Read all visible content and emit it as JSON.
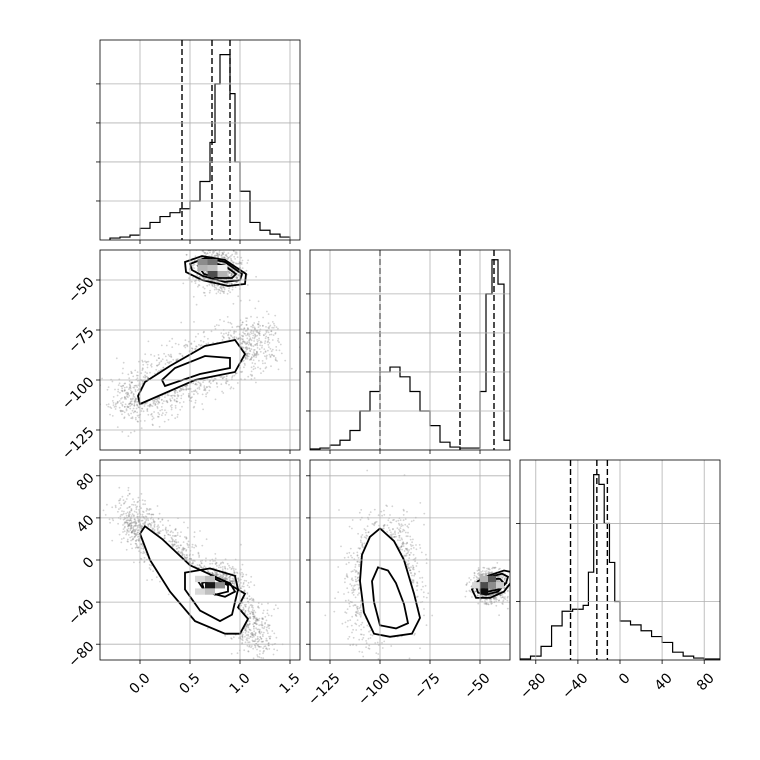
{
  "chart_data": {
    "type": "corner",
    "parameters": [
      {
        "xlim": [
          -0.4,
          1.6
        ],
        "ticks": [
          0.0,
          0.5,
          1.0,
          1.5
        ],
        "tick_labels": [
          "0.0",
          "0.5",
          "1.0",
          "1.5"
        ]
      },
      {
        "xlim": [
          -135,
          -35
        ],
        "ticks": [
          -125,
          -100,
          -75,
          -50
        ],
        "tick_labels": [
          "−125",
          "−100",
          "−75",
          "−50"
        ]
      },
      {
        "xlim": [
          -95,
          95
        ],
        "ticks": [
          -80,
          -40,
          0,
          40,
          80
        ],
        "tick_labels": [
          "−80",
          "−40",
          "0",
          "40",
          "80"
        ]
      }
    ],
    "histograms": [
      {
        "param": 0,
        "edges": [
          -0.3,
          -0.2,
          -0.1,
          0.0,
          0.1,
          0.2,
          0.3,
          0.4,
          0.5,
          0.6,
          0.7,
          0.75,
          0.8,
          0.85,
          0.9,
          0.95,
          1.0,
          1.1,
          1.2,
          1.3,
          1.4,
          1.5
        ],
        "counts": [
          2,
          3,
          5,
          12,
          18,
          24,
          28,
          32,
          40,
          60,
          100,
          160,
          190,
          190,
          150,
          80,
          50,
          18,
          10,
          6,
          3
        ],
        "ymax": 205,
        "ticks": [
          40,
          80,
          120,
          160
        ],
        "quantiles": [
          0.42,
          0.72,
          0.9
        ]
      },
      {
        "param": 1,
        "edges": [
          -135,
          -130,
          -125,
          -120,
          -115,
          -110,
          -105,
          -100,
          -95,
          -90,
          -85,
          -80,
          -75,
          -70,
          -65,
          -60,
          -55,
          -50,
          -47,
          -44,
          -41,
          -38,
          -35
        ],
        "counts": [
          1,
          2,
          5,
          10,
          20,
          40,
          60,
          80,
          85,
          75,
          60,
          40,
          25,
          8,
          3,
          2,
          2,
          60,
          160,
          195,
          170,
          10
        ],
        "ymax": 205,
        "ticks": [
          40,
          80,
          120,
          160
        ],
        "quantiles": [
          -100,
          -60,
          -43
        ]
      },
      {
        "param": 2,
        "edges": [
          -95,
          -85,
          -75,
          -65,
          -55,
          -45,
          -35,
          -30,
          -25,
          -20,
          -15,
          -10,
          -5,
          0,
          10,
          20,
          30,
          40,
          50,
          60,
          70,
          80,
          95
        ],
        "counts": [
          1,
          4,
          14,
          35,
          50,
          52,
          56,
          90,
          190,
          180,
          140,
          100,
          60,
          40,
          36,
          30,
          24,
          18,
          8,
          4,
          2,
          1
        ],
        "ymax": 205,
        "ticks": [
          60,
          140
        ],
        "quantiles": [
          -47,
          -22,
          -12
        ]
      }
    ],
    "scatter_panels": [
      {
        "x_param": 0,
        "y_param": 1,
        "modes": [
          {
            "type": "ellipse",
            "cx": 0.78,
            "cy": -45,
            "sx": 0.12,
            "sy": 5,
            "rot_deg": -22,
            "n": 900
          },
          {
            "type": "line",
            "x0": 0.0,
            "y0": -108,
            "x1": 1.1,
            "y1": -82,
            "sx": 0.12,
            "sy": 7,
            "n": 1700
          }
        ],
        "contours": [
          {
            "fill": true,
            "points": [
              [
                0.0,
                -112
              ],
              [
                0.55,
                -100
              ],
              [
                0.95,
                -96
              ],
              [
                1.05,
                -87
              ],
              [
                0.95,
                -80
              ],
              [
                0.65,
                -83
              ],
              [
                0.3,
                -93
              ],
              [
                0.05,
                -101
              ],
              [
                -0.02,
                -108
              ]
            ]
          },
          {
            "fill": false,
            "points": [
              [
                0.25,
                -103
              ],
              [
                0.6,
                -97
              ],
              [
                0.9,
                -94
              ],
              [
                0.9,
                -89
              ],
              [
                0.65,
                -88
              ],
              [
                0.35,
                -94
              ],
              [
                0.22,
                -100
              ]
            ]
          },
          {
            "fill": false,
            "points": [
              [
                0.45,
                -41
              ],
              [
                0.62,
                -38
              ],
              [
                0.85,
                -40
              ],
              [
                1.06,
                -47
              ],
              [
                1.05,
                -52
              ],
              [
                0.88,
                -53
              ],
              [
                0.62,
                -50
              ],
              [
                0.46,
                -46
              ]
            ]
          },
          {
            "fill": false,
            "points": [
              [
                0.5,
                -42
              ],
              [
                0.65,
                -39
              ],
              [
                0.85,
                -41
              ],
              [
                1.02,
                -47
              ],
              [
                1.0,
                -50
              ],
              [
                0.85,
                -51
              ],
              [
                0.63,
                -48
              ],
              [
                0.52,
                -45
              ]
            ]
          },
          {
            "fill": false,
            "points": [
              [
                0.58,
                -43
              ],
              [
                0.7,
                -41
              ],
              [
                0.85,
                -43
              ],
              [
                0.96,
                -47
              ],
              [
                0.92,
                -49
              ],
              [
                0.78,
                -49
              ],
              [
                0.64,
                -47
              ]
            ]
          }
        ],
        "density": [
          {
            "x": 0.625,
            "y": -41,
            "w": 0.1,
            "h": 3,
            "shade": 0.45
          },
          {
            "x": 0.725,
            "y": -41,
            "w": 0.1,
            "h": 3,
            "shade": 0.55
          },
          {
            "x": 0.625,
            "y": -44,
            "w": 0.1,
            "h": 3,
            "shade": 0.3
          },
          {
            "x": 0.725,
            "y": -44,
            "w": 0.1,
            "h": 3,
            "shade": 0.25
          },
          {
            "x": 0.825,
            "y": -44,
            "w": 0.1,
            "h": 3,
            "shade": 0.05
          },
          {
            "x": 0.825,
            "y": -47,
            "w": 0.1,
            "h": 3,
            "shade": 0.3
          },
          {
            "x": 0.725,
            "y": -47,
            "w": 0.1,
            "h": 3,
            "shade": 0.7
          }
        ]
      },
      {
        "x_param": 0,
        "y_param": 2,
        "modes": [
          {
            "type": "line",
            "x0": 0.0,
            "y0": 30,
            "x1": 1.1,
            "y1": -62,
            "sx": 0.08,
            "sy": 12,
            "n": 2000
          },
          {
            "type": "ellipse",
            "cx": 0.78,
            "cy": -24,
            "sx": 0.12,
            "sy": 9,
            "rot_deg": 0,
            "n": 700
          }
        ],
        "contours": [
          {
            "fill": true,
            "points": [
              [
                0.05,
                32
              ],
              [
                0.22,
                20
              ],
              [
                0.5,
                -5
              ],
              [
                0.8,
                -18
              ],
              [
                1.05,
                -32
              ],
              [
                0.98,
                -45
              ],
              [
                1.08,
                -56
              ],
              [
                1.0,
                -70
              ],
              [
                0.85,
                -70
              ],
              [
                0.55,
                -58
              ],
              [
                0.3,
                -30
              ],
              [
                0.1,
                0
              ],
              [
                0.0,
                25
              ]
            ]
          },
          {
            "fill": false,
            "points": [
              [
                0.45,
                -12
              ],
              [
                0.7,
                -8
              ],
              [
                0.95,
                -15
              ],
              [
                0.98,
                -28
              ],
              [
                0.92,
                -52
              ],
              [
                0.8,
                -58
              ],
              [
                0.6,
                -48
              ],
              [
                0.45,
                -28
              ]
            ]
          },
          {
            "fill": false,
            "points": [
              [
                0.58,
                -20
              ],
              [
                0.72,
                -15
              ],
              [
                0.9,
                -22
              ],
              [
                0.95,
                -30
              ],
              [
                0.85,
                -35
              ],
              [
                0.65,
                -30
              ]
            ]
          },
          {
            "fill": false,
            "points": [
              [
                0.62,
                -22
              ],
              [
                0.75,
                -18
              ],
              [
                0.88,
                -24
              ],
              [
                0.88,
                -30
              ],
              [
                0.75,
                -33
              ],
              [
                0.64,
                -28
              ]
            ]
          }
        ],
        "density": [
          {
            "x": 0.6,
            "y": -18,
            "w": 0.1,
            "h": 6,
            "shade": 0.15
          },
          {
            "x": 0.7,
            "y": -18,
            "w": 0.1,
            "h": 6,
            "shade": 0.25
          },
          {
            "x": 0.8,
            "y": -24,
            "w": 0.1,
            "h": 6,
            "shade": 0.45
          },
          {
            "x": 0.7,
            "y": -24,
            "w": 0.1,
            "h": 6,
            "shade": 0.9
          },
          {
            "x": 0.6,
            "y": -30,
            "w": 0.1,
            "h": 6,
            "shade": 0.15
          },
          {
            "x": 0.7,
            "y": -30,
            "w": 0.1,
            "h": 6,
            "shade": 0.25
          }
        ]
      },
      {
        "x_param": 1,
        "y_param": 2,
        "modes": [
          {
            "type": "ellipse",
            "cx": -98,
            "cy": -18,
            "sx": 8,
            "sy": 28,
            "rot_deg": -8,
            "n": 1800
          },
          {
            "type": "ellipse",
            "cx": -45,
            "cy": -25,
            "sx": 4,
            "sy": 7,
            "rot_deg": -25,
            "n": 900
          }
        ],
        "contours": [
          {
            "fill": true,
            "points": [
              [
                -105,
                22
              ],
              [
                -100,
                30
              ],
              [
                -93,
                18
              ],
              [
                -88,
                0
              ],
              [
                -83,
                -32
              ],
              [
                -80,
                -55
              ],
              [
                -84,
                -70
              ],
              [
                -95,
                -73
              ],
              [
                -103,
                -70
              ],
              [
                -108,
                -50
              ],
              [
                -110,
                -20
              ],
              [
                -109,
                5
              ]
            ]
          },
          {
            "fill": false,
            "points": [
              [
                -101,
                -7
              ],
              [
                -96,
                -10
              ],
              [
                -92,
                -22
              ],
              [
                -88,
                -42
              ],
              [
                -86,
                -60
              ],
              [
                -92,
                -65
              ],
              [
                -100,
                -62
              ],
              [
                -103,
                -40
              ],
              [
                -104,
                -20
              ]
            ]
          },
          {
            "fill": false,
            "points": [
              [
                -51,
                -20
              ],
              [
                -46,
                -15
              ],
              [
                -38,
                -10
              ],
              [
                -33,
                -12
              ],
              [
                -34,
                -20
              ],
              [
                -38,
                -30
              ],
              [
                -45,
                -36
              ],
              [
                -52,
                -36
              ],
              [
                -54,
                -28
              ]
            ]
          },
          {
            "fill": false,
            "points": [
              [
                -49,
                -20
              ],
              [
                -45,
                -16
              ],
              [
                -39,
                -13
              ],
              [
                -36,
                -16
              ],
              [
                -37,
                -22
              ],
              [
                -41,
                -30
              ],
              [
                -47,
                -33
              ],
              [
                -51,
                -31
              ],
              [
                -52,
                -25
              ]
            ]
          },
          {
            "fill": false,
            "points": [
              [
                -46,
                -21
              ],
              [
                -43,
                -18
              ],
              [
                -40,
                -18
              ],
              [
                -38,
                -22
              ],
              [
                -41,
                -28
              ],
              [
                -46,
                -30
              ],
              [
                -49,
                -26
              ]
            ]
          }
        ],
        "density": [
          {
            "x": -48,
            "y": -18,
            "w": 4,
            "h": 6,
            "shade": 0.3
          },
          {
            "x": -44,
            "y": -18,
            "w": 4,
            "h": 6,
            "shade": 0.65
          },
          {
            "x": -48,
            "y": -24,
            "w": 4,
            "h": 6,
            "shade": 0.7
          },
          {
            "x": -44,
            "y": -24,
            "w": 4,
            "h": 6,
            "shade": 0.45
          },
          {
            "x": -48,
            "y": -30,
            "w": 4,
            "h": 6,
            "shade": 0.95
          },
          {
            "x": -40,
            "y": -24,
            "w": 4,
            "h": 6,
            "shade": 0.2
          },
          {
            "x": -52,
            "y": -24,
            "w": 4,
            "h": 6,
            "shade": 0.15
          }
        ]
      }
    ],
    "colors": {
      "line": "#000000",
      "points": "#808080",
      "grid": "#b0b0b0"
    },
    "grid": true,
    "title": "",
    "xlabel": "",
    "ylabel": ""
  }
}
